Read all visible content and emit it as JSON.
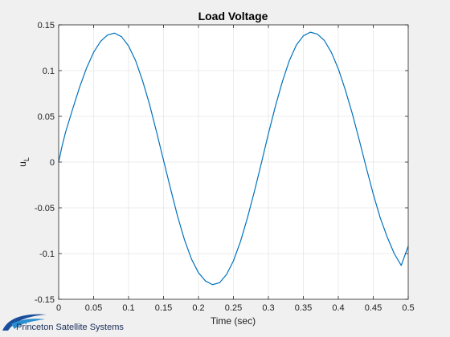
{
  "chart_data": {
    "type": "line",
    "title": "Load Voltage",
    "xlabel": "Time (sec)",
    "ylabel_main": "u",
    "ylabel_sub": "L",
    "xlim": [
      0,
      0.5
    ],
    "ylim": [
      -0.15,
      0.15
    ],
    "grid": true,
    "x_ticks": [
      0,
      0.05,
      0.1,
      0.15,
      0.2,
      0.25,
      0.3,
      0.35,
      0.4,
      0.45,
      0.5
    ],
    "x_tick_labels": [
      "0",
      "0.05",
      "0.1",
      "0.15",
      "0.2",
      "0.25",
      "0.3",
      "0.35",
      "0.4",
      "0.45",
      "0.5"
    ],
    "y_ticks": [
      -0.15,
      -0.1,
      -0.05,
      0,
      0.05,
      0.1,
      0.15
    ],
    "y_tick_labels": [
      "-0.15",
      "-0.1",
      "-0.05",
      "0",
      "0.05",
      "0.1",
      "0.15"
    ],
    "series": [
      {
        "color": "#0072BD",
        "x": [
          0,
          0.005,
          0.01,
          0.02,
          0.03,
          0.04,
          0.05,
          0.06,
          0.07,
          0.08,
          0.09,
          0.1,
          0.11,
          0.12,
          0.13,
          0.14,
          0.15,
          0.16,
          0.17,
          0.18,
          0.19,
          0.2,
          0.21,
          0.22,
          0.23,
          0.24,
          0.25,
          0.26,
          0.27,
          0.28,
          0.29,
          0.3,
          0.31,
          0.32,
          0.33,
          0.34,
          0.35,
          0.36,
          0.37,
          0.38,
          0.39,
          0.4,
          0.41,
          0.42,
          0.43,
          0.44,
          0.45,
          0.46,
          0.47,
          0.48,
          0.49,
          0.5
        ],
        "y": [
          0,
          0.018,
          0.033,
          0.058,
          0.082,
          0.103,
          0.12,
          0.132,
          0.139,
          0.141,
          0.137,
          0.127,
          0.111,
          0.089,
          0.063,
          0.033,
          0.002,
          -0.029,
          -0.059,
          -0.085,
          -0.106,
          -0.121,
          -0.13,
          -0.134,
          -0.132,
          -0.123,
          -0.108,
          -0.087,
          -0.061,
          -0.032,
          -0.001,
          0.031,
          0.061,
          0.088,
          0.111,
          0.128,
          0.138,
          0.142,
          0.14,
          0.133,
          0.12,
          0.102,
          0.079,
          0.053,
          0.024,
          -0.006,
          -0.035,
          -0.061,
          -0.082,
          -0.1,
          -0.113,
          -0.092
        ]
      }
    ]
  },
  "branding": {
    "text": "Princeton Satellite Systems",
    "logo_colors": [
      "#1a4e9c",
      "#2a8fd0"
    ]
  }
}
